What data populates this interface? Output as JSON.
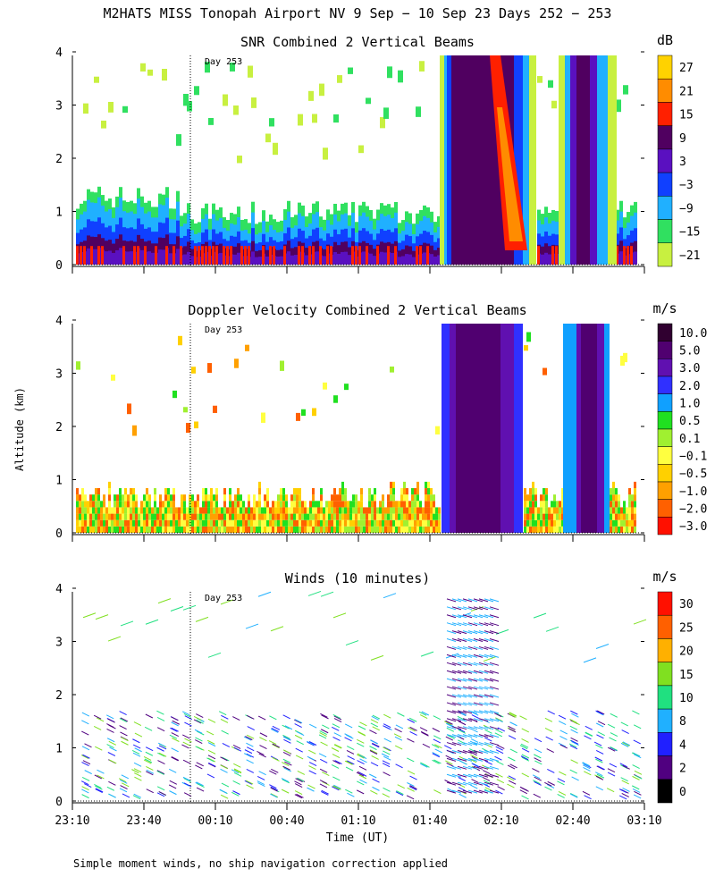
{
  "title": "M2HATS MISS Tonopah Airport NV   9 Sep − 10 Sep 23 Days 252 − 253",
  "footer": "Simple moment winds, no ship navigation correction applied",
  "ylabel": "Altitude (km)",
  "xlabel": "Time (UT)",
  "day_marker": "Day 253",
  "x_ticks": [
    "23:10",
    "23:40",
    "00:10",
    "00:40",
    "01:10",
    "01:40",
    "02:10",
    "02:40",
    "03:10"
  ],
  "y_ticks": [
    "0",
    "1",
    "2",
    "3",
    "4"
  ],
  "chart_data": [
    {
      "type": "heatmap",
      "title": "SNR Combined 2 Vertical Beams",
      "unit": "dB",
      "ylim": [
        0,
        4
      ],
      "x_range": [
        "23:10",
        "03:10"
      ],
      "colorbar": {
        "labels": [
          "27",
          "21",
          "15",
          "9",
          "3",
          "−3",
          "−9",
          "−15",
          "−21"
        ],
        "colors": [
          "#ffd200",
          "#ff8c00",
          "#ff2000",
          "#500060",
          "#5a10c0",
          "#1040ff",
          "#20b0ff",
          "#30e060",
          "#c8f040"
        ]
      }
    },
    {
      "type": "heatmap",
      "title": "Doppler Velocity Combined 2 Vertical Beams",
      "unit": "m/s",
      "ylim": [
        0,
        4
      ],
      "x_range": [
        "23:10",
        "03:10"
      ],
      "colorbar": {
        "labels": [
          "10.0",
          "5.0",
          "3.0",
          "2.0",
          "1.0",
          "0.5",
          "0.1",
          "−0.1",
          "−0.5",
          "−1.0",
          "−2.0",
          "−3.0"
        ],
        "colors": [
          "#300030",
          "#500070",
          "#6010b0",
          "#3030ff",
          "#10a0ff",
          "#20e020",
          "#a0f030",
          "#ffff40",
          "#ffd000",
          "#ffa000",
          "#ff6000",
          "#ff1000"
        ]
      }
    },
    {
      "type": "scatter",
      "title": "Winds (10 minutes)",
      "unit": "m/s",
      "ylim": [
        0,
        4
      ],
      "x_range": [
        "23:10",
        "03:10"
      ],
      "colorbar": {
        "labels": [
          "30",
          "25",
          "20",
          "15",
          "10",
          "8",
          "4",
          "2",
          "0"
        ],
        "colors": [
          "#ff1000",
          "#ff6000",
          "#ffb000",
          "#80e020",
          "#20e080",
          "#20b0ff",
          "#2020ff",
          "#500080",
          "#000000"
        ]
      }
    }
  ]
}
